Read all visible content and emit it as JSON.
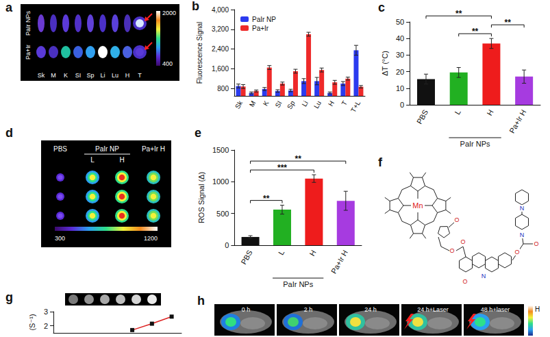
{
  "chart_data": [
    {
      "panel": "b",
      "type": "bar",
      "ylabel": "Fluorescence Signal",
      "categories": [
        "Sk",
        "M",
        "K",
        "SI",
        "Sp",
        "Li",
        "Lu",
        "H",
        "T",
        "T+L"
      ],
      "series": [
        {
          "name": "PaIr NP",
          "color": "#2b3bef",
          "values": [
            900,
            620,
            780,
            700,
            720,
            1100,
            1100,
            620,
            1000,
            2350
          ],
          "errors": [
            80,
            40,
            60,
            50,
            50,
            100,
            150,
            40,
            80,
            200
          ]
        },
        {
          "name": "Pa+Ir",
          "color": "#ee2a2a",
          "values": [
            880,
            700,
            1650,
            1000,
            1500,
            3000,
            1550,
            1050,
            1200,
            870
          ],
          "errors": [
            80,
            40,
            80,
            60,
            80,
            80,
            80,
            80,
            60,
            50
          ]
        }
      ],
      "ylim": [
        500,
        4000
      ],
      "yticks": [
        800,
        {
          "value": 1600,
          "label": "1,600"
        },
        {
          "value": 2400,
          "label": "2,400"
        },
        {
          "value": 3200,
          "label": "3,200"
        },
        {
          "value": 4000,
          "label": "4,000"
        }
      ],
      "legend": "upper left",
      "grid": false
    },
    {
      "panel": "c",
      "type": "bar",
      "ylabel": "ΔT (°C)",
      "categories": [
        "PBS",
        "L",
        "H",
        "Pa+Ir H"
      ],
      "values": [
        15.5,
        19.5,
        37,
        17
      ],
      "errors": [
        3,
        3,
        3,
        4
      ],
      "colors": [
        "#111111",
        "#22b022",
        "#ee1c1c",
        "#a63be0"
      ],
      "ylim": [
        0,
        50
      ],
      "yticks": [
        0,
        10,
        20,
        30,
        40,
        50
      ],
      "group": {
        "label": "PaIr NPs",
        "categories": [
          "L",
          "H"
        ]
      },
      "significance": [
        {
          "from": "PBS",
          "to": "H",
          "label": "**"
        },
        {
          "from": "L",
          "to": "H",
          "label": "**"
        },
        {
          "from": "H",
          "to": "Pa+Ir H",
          "label": "**"
        }
      ],
      "grid": false
    },
    {
      "panel": "e",
      "type": "bar",
      "ylabel": "ROS Signal (Δ)",
      "categories": [
        "PBS",
        "L",
        "H",
        "Pa+Ir H"
      ],
      "values": [
        130,
        560,
        1050,
        700
      ],
      "errors": [
        20,
        70,
        60,
        150
      ],
      "colors": [
        "#111111",
        "#22b022",
        "#ee1c1c",
        "#a63be0"
      ],
      "ylim": [
        0,
        1500
      ],
      "yticks": [
        0,
        500,
        1000,
        1500
      ],
      "group": {
        "label": "PaIr NPs",
        "categories": [
          "L",
          "H"
        ]
      },
      "significance": [
        {
          "from": "PBS",
          "to": "L",
          "label": "**"
        },
        {
          "from": "PBS",
          "to": "H",
          "label": "***"
        },
        {
          "from": "PBS",
          "to": "Pa+Ir H",
          "label": "**"
        }
      ],
      "grid": false
    },
    {
      "panel": "g",
      "type": "line",
      "ylabel": "(S⁻¹)",
      "x": [
        4,
        5,
        6
      ],
      "values": [
        1.7,
        2.15,
        2.65
      ],
      "xlim": [
        0,
        6.5
      ],
      "ylim": [
        1.5,
        3
      ],
      "yticks": [
        2,
        3
      ],
      "tick_labels": "y",
      "color": "#dd2222",
      "marker": "square",
      "grid": false
    }
  ],
  "images": {
    "a": {
      "panel": "a",
      "rows": [
        "PaIr NPs",
        "Pa+Ir"
      ],
      "organs": [
        "Sk",
        "M",
        "K",
        "SI",
        "Sp",
        "Li",
        "Lu",
        "H",
        "T"
      ],
      "colorbar": [
        400,
        2000
      ]
    },
    "d": {
      "panel": "d",
      "columns": [
        "PBS",
        "L",
        "H",
        "Pa+Ir H"
      ],
      "group": {
        "label": "PaIr NP",
        "columns": [
          "L",
          "H"
        ]
      },
      "colorbar": [
        300,
        1200
      ]
    },
    "f": {
      "panel": "f",
      "center_atom": "Mn",
      "atoms": [
        "O",
        "O",
        "O",
        "O",
        "N",
        "O",
        "O",
        "N",
        "N"
      ]
    },
    "h": {
      "panel": "h",
      "frames": [
        "0 h",
        "2 h",
        "24 h",
        "24 h+Laser",
        "48 h+laser"
      ],
      "colorbar_label": "H"
    }
  }
}
